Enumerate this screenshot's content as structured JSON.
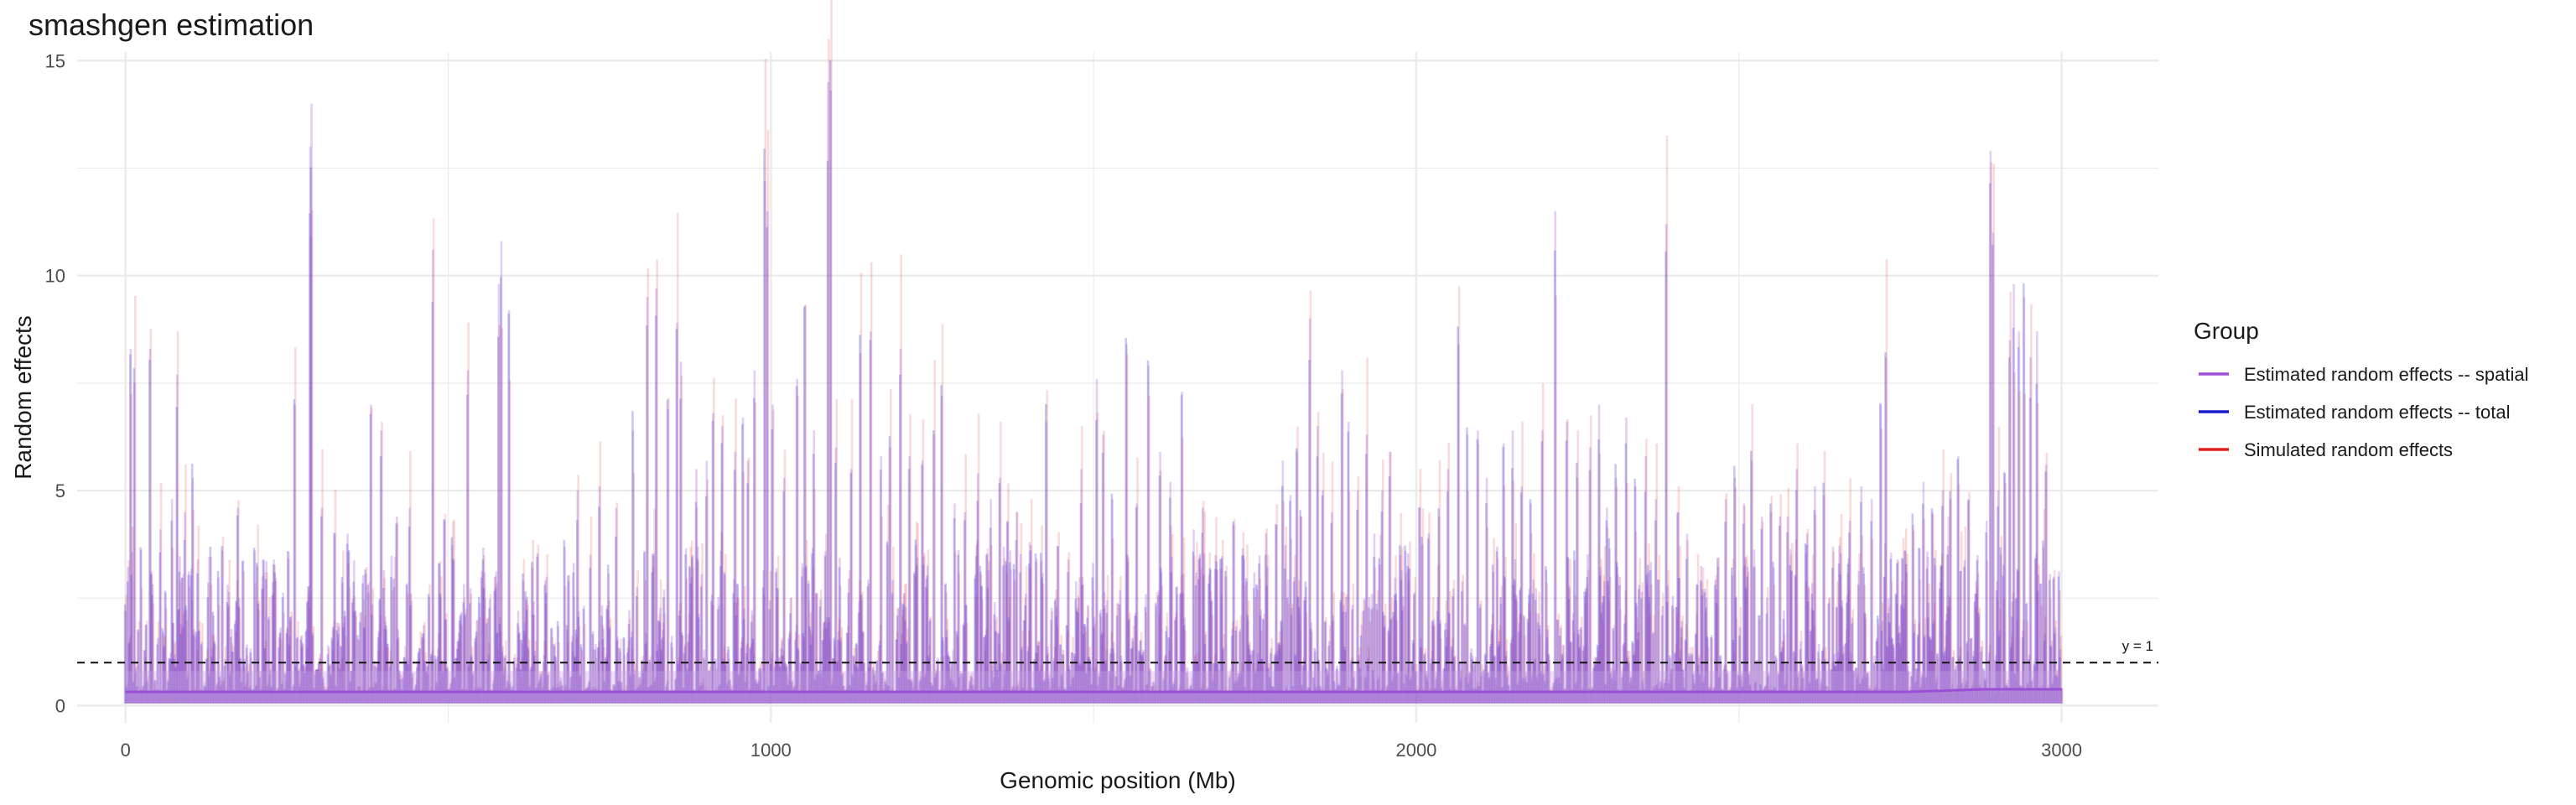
{
  "chart_data": {
    "type": "line",
    "title": "smashgen estimation",
    "xlabel": "Genomic position (Mb)",
    "ylabel": "Random effects",
    "xlim": [
      -75,
      3150
    ],
    "ylim": [
      -0.4,
      15.2
    ],
    "xticks": [
      0,
      1000,
      2000,
      3000
    ],
    "yticks": [
      0,
      5,
      10,
      15
    ],
    "grid": true,
    "reference_line": {
      "y": 1,
      "style": "dashed",
      "label": "y = 1"
    },
    "legend": {
      "title": "Group",
      "position": "right",
      "entries": [
        {
          "label": "Estimated random effects -- spatial",
          "color": "#9b4fd6"
        },
        {
          "label": "Estimated random effects -- total",
          "color": "#1a1acc"
        },
        {
          "label": "Simulated random effects",
          "color": "#e01e1e"
        }
      ]
    },
    "series": [
      {
        "name": "Simulated random effects",
        "color": "#e01e1e",
        "opacity": 0.16
      },
      {
        "name": "Estimated random effects -- total",
        "color": "#1a1acc",
        "opacity": 0.24
      },
      {
        "name": "Estimated random effects -- spatial",
        "color": "#9b4fd6",
        "opacity": 0.28
      }
    ],
    "position_range": [
      0,
      3000
    ],
    "n_positions": 1500,
    "peaks": [
      [
        1,
        2.2
      ],
      [
        8,
        8.3
      ],
      [
        15,
        7.5
      ],
      [
        38,
        8.3
      ],
      [
        55,
        4.1
      ],
      [
        72,
        4.8
      ],
      [
        80,
        7.7
      ],
      [
        92,
        4.5
      ],
      [
        105,
        5.3
      ],
      [
        150,
        3.6
      ],
      [
        175,
        4.6
      ],
      [
        200,
        3.6
      ],
      [
        230,
        3.3
      ],
      [
        263,
        7.0
      ],
      [
        287,
        13.0
      ],
      [
        288,
        14.0
      ],
      [
        305,
        4.6
      ],
      [
        325,
        4.0
      ],
      [
        345,
        4.0
      ],
      [
        380,
        7.0
      ],
      [
        397,
        6.4
      ],
      [
        420,
        4.4
      ],
      [
        440,
        4.6
      ],
      [
        476,
        10.6
      ],
      [
        494,
        4.3
      ],
      [
        530,
        7.8
      ],
      [
        556,
        3.1
      ],
      [
        578,
        9.8
      ],
      [
        582,
        10.8
      ],
      [
        595,
        9.2
      ],
      [
        630,
        3.2
      ],
      [
        652,
        3.0
      ],
      [
        680,
        3.7
      ],
      [
        700,
        5.0
      ],
      [
        720,
        3.5
      ],
      [
        735,
        5.1
      ],
      [
        760,
        4.6
      ],
      [
        787,
        6.4
      ],
      [
        808,
        9.5
      ],
      [
        822,
        9.7
      ],
      [
        840,
        6.9
      ],
      [
        855,
        8.9
      ],
      [
        861,
        8.0
      ],
      [
        885,
        5.5
      ],
      [
        900,
        5.7
      ],
      [
        910,
        6.8
      ],
      [
        925,
        6.5
      ],
      [
        945,
        5.9
      ],
      [
        957,
        6.7
      ],
      [
        965,
        5.7
      ],
      [
        975,
        7.8
      ],
      [
        990,
        12.2
      ],
      [
        995,
        11.5
      ],
      [
        1003,
        7.0
      ],
      [
        1020,
        5.3
      ],
      [
        1040,
        7.6
      ],
      [
        1052,
        9.3
      ],
      [
        1066,
        6.4
      ],
      [
        1088,
        14.5
      ],
      [
        1092,
        14.3
      ],
      [
        1100,
        6.0
      ],
      [
        1125,
        5.5
      ],
      [
        1138,
        8.2
      ],
      [
        1155,
        8.7
      ],
      [
        1170,
        5.8
      ],
      [
        1185,
        6.0
      ],
      [
        1201,
        8.3
      ],
      [
        1215,
        5.8
      ],
      [
        1235,
        5.7
      ],
      [
        1253,
        6.3
      ],
      [
        1265,
        7.2
      ],
      [
        1285,
        4.7
      ],
      [
        1300,
        4.5
      ],
      [
        1320,
        5.4
      ],
      [
        1340,
        4.8
      ],
      [
        1354,
        5.3
      ],
      [
        1366,
        4.3
      ],
      [
        1380,
        4.5
      ],
      [
        1400,
        3.8
      ],
      [
        1427,
        6.6
      ],
      [
        1445,
        3.7
      ],
      [
        1460,
        3.4
      ],
      [
        1480,
        5.5
      ],
      [
        1505,
        7.6
      ],
      [
        1516,
        6.3
      ],
      [
        1530,
        4.8
      ],
      [
        1552,
        8.4
      ],
      [
        1568,
        4.7
      ],
      [
        1585,
        7.9
      ],
      [
        1603,
        5.9
      ],
      [
        1620,
        5.2
      ],
      [
        1638,
        7.3
      ],
      [
        1655,
        4.1
      ],
      [
        1670,
        4.6
      ],
      [
        1690,
        3.5
      ],
      [
        1705,
        3.0
      ],
      [
        1718,
        4.2
      ],
      [
        1734,
        3.4
      ],
      [
        1750,
        3.1
      ],
      [
        1767,
        4.0
      ],
      [
        1783,
        4.2
      ],
      [
        1793,
        5.7
      ],
      [
        1805,
        4.9
      ],
      [
        1815,
        5.9
      ],
      [
        1822,
        4.4
      ],
      [
        1835,
        9.0
      ],
      [
        1847,
        6.5
      ],
      [
        1856,
        5.0
      ],
      [
        1870,
        4.5
      ],
      [
        1885,
        7.8
      ],
      [
        1896,
        6.6
      ],
      [
        1910,
        5.0
      ],
      [
        1924,
        6.3
      ],
      [
        1935,
        4.0
      ],
      [
        1948,
        5.0
      ],
      [
        1960,
        5.9
      ],
      [
        1975,
        3.5
      ],
      [
        1990,
        3.2
      ],
      [
        2005,
        4.6
      ],
      [
        2020,
        4.0
      ],
      [
        2035,
        4.4
      ],
      [
        2050,
        5.5
      ],
      [
        2065,
        8.4
      ],
      [
        2080,
        6.3
      ],
      [
        2095,
        6.4
      ],
      [
        2110,
        5.3
      ],
      [
        2125,
        3.7
      ],
      [
        2135,
        6.1
      ],
      [
        2150,
        6.4
      ],
      [
        2164,
        5.1
      ],
      [
        2178,
        4.7
      ],
      [
        2196,
        6.4
      ],
      [
        2215,
        11.5
      ],
      [
        2233,
        6.6
      ],
      [
        2250,
        5.3
      ],
      [
        2270,
        6.0
      ],
      [
        2283,
        7.0
      ],
      [
        2296,
        4.6
      ],
      [
        2310,
        5.3
      ],
      [
        2325,
        6.7
      ],
      [
        2340,
        5.1
      ],
      [
        2355,
        5.8
      ],
      [
        2372,
        4.8
      ],
      [
        2388,
        11.2
      ],
      [
        2405,
        4.5
      ],
      [
        2420,
        4.0
      ],
      [
        2435,
        2.8
      ],
      [
        2450,
        2.5
      ],
      [
        2465,
        2.7
      ],
      [
        2480,
        4.8
      ],
      [
        2493,
        5.3
      ],
      [
        2508,
        4.7
      ],
      [
        2520,
        5.7
      ],
      [
        2535,
        4.4
      ],
      [
        2550,
        4.5
      ],
      [
        2563,
        4.4
      ],
      [
        2576,
        4.4
      ],
      [
        2590,
        5.5
      ],
      [
        2605,
        4.0
      ],
      [
        2618,
        5.1
      ],
      [
        2632,
        4.9
      ],
      [
        2645,
        3.7
      ],
      [
        2658,
        3.1
      ],
      [
        2672,
        4.3
      ],
      [
        2690,
        5.1
      ],
      [
        2705,
        4.8
      ],
      [
        2720,
        7.0
      ],
      [
        2728,
        8.1
      ],
      [
        2745,
        3.4
      ],
      [
        2757,
        3.6
      ],
      [
        2770,
        4.2
      ],
      [
        2785,
        5.2
      ],
      [
        2800,
        4.5
      ],
      [
        2815,
        5.0
      ],
      [
        2828,
        4.8
      ],
      [
        2840,
        5.8
      ],
      [
        2855,
        4.8
      ],
      [
        2870,
        3.5
      ],
      [
        2883,
        4.3
      ],
      [
        2890,
        12.9
      ],
      [
        2893,
        11.0
      ],
      [
        2902,
        5.0
      ],
      [
        2912,
        5.4
      ],
      [
        2920,
        8.5
      ],
      [
        2926,
        9.8
      ],
      [
        2933,
        8.7
      ],
      [
        2942,
        9.5
      ],
      [
        2952,
        8.1
      ],
      [
        2962,
        8.7
      ],
      [
        2975,
        5.6
      ],
      [
        2987,
        3.0
      ],
      [
        2996,
        2.9
      ]
    ],
    "estimated_mean": [
      [
        0,
        0.32
      ],
      [
        2760,
        0.32
      ],
      [
        2880,
        0.38
      ],
      [
        3000,
        0.38
      ]
    ]
  }
}
